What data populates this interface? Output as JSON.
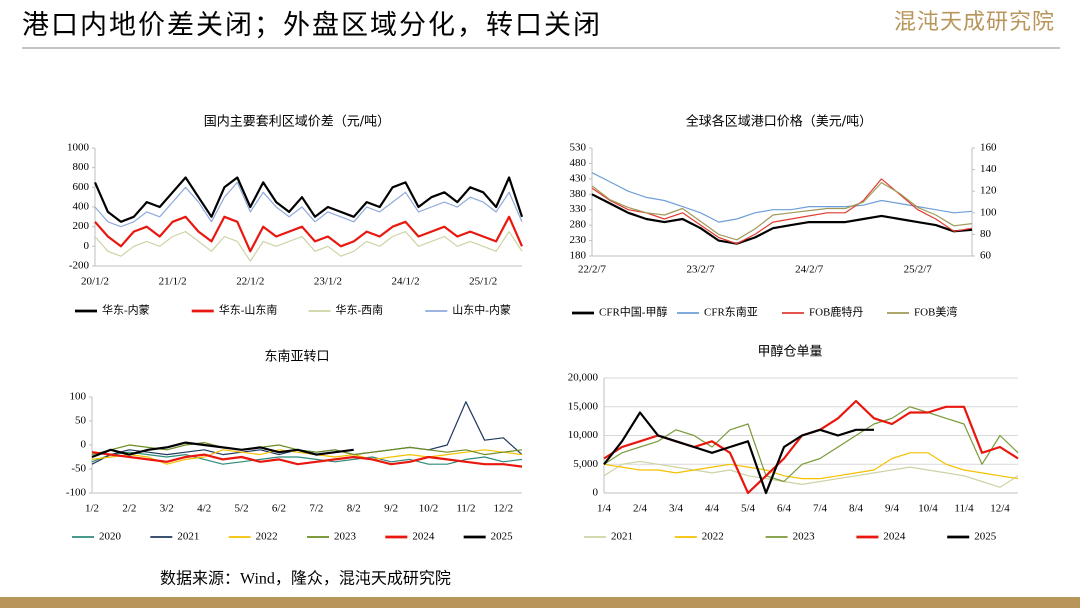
{
  "title": "港口内地价差关闭；外盘区域分化，转口关闭",
  "logo": "混沌天成研究院",
  "source": "数据来源：Wind，隆众，混沌天成研究院",
  "chart_data": [
    {
      "type": "line",
      "title": "国内主要套利区域价差（元/吨）",
      "categories": [
        "20/1/2",
        null,
        null,
        null,
        null,
        null,
        "21/1/2",
        null,
        null,
        null,
        null,
        null,
        "22/1/2",
        null,
        null,
        null,
        null,
        null,
        "23/1/2",
        null,
        null,
        null,
        null,
        null,
        "24/1/2",
        null,
        null,
        null,
        null,
        null,
        "25/1/2",
        null,
        null,
        null
      ],
      "ylim": [
        -200,
        1000
      ],
      "yticks": [
        -200,
        0,
        200,
        400,
        600,
        800,
        1000
      ],
      "grid": false,
      "series": [
        {
          "name": "华东-内蒙",
          "color": "#000000",
          "values": [
            650,
            350,
            250,
            300,
            450,
            400,
            550,
            700,
            500,
            300,
            600,
            700,
            400,
            650,
            450,
            350,
            500,
            300,
            400,
            350,
            300,
            450,
            400,
            600,
            650,
            400,
            500,
            550,
            450,
            600,
            550,
            400,
            700,
            300
          ]
        },
        {
          "name": "华东-山东南",
          "color": "#e8170f",
          "values": [
            250,
            100,
            0,
            150,
            200,
            100,
            250,
            300,
            150,
            50,
            300,
            250,
            -50,
            200,
            100,
            150,
            200,
            50,
            100,
            0,
            50,
            150,
            100,
            200,
            250,
            100,
            150,
            200,
            100,
            150,
            100,
            50,
            300,
            0
          ]
        },
        {
          "name": "华东-西南",
          "color": "#cdd3a6",
          "values": [
            100,
            -50,
            -100,
            0,
            50,
            0,
            100,
            150,
            50,
            -50,
            100,
            50,
            -150,
            50,
            0,
            50,
            100,
            -50,
            0,
            -100,
            -50,
            50,
            0,
            100,
            150,
            0,
            50,
            100,
            0,
            50,
            0,
            -50,
            150,
            -50
          ]
        },
        {
          "name": "山东中-内蒙",
          "color": "#8eaadb",
          "values": [
            400,
            250,
            200,
            250,
            350,
            300,
            450,
            600,
            450,
            250,
            500,
            650,
            350,
            550,
            400,
            300,
            400,
            250,
            350,
            300,
            250,
            400,
            350,
            450,
            550,
            350,
            400,
            450,
            400,
            500,
            450,
            350,
            550,
            250
          ]
        }
      ]
    },
    {
      "type": "line",
      "title": "全球各区域港口价格（美元/吨）",
      "categories": [
        "22/2/7",
        null,
        null,
        null,
        null,
        null,
        "23/2/7",
        null,
        null,
        null,
        null,
        null,
        "24/2/7",
        null,
        null,
        null,
        null,
        null,
        "25/2/7",
        null,
        null,
        null
      ],
      "ylim": [
        180,
        530
      ],
      "yticks": [
        180,
        230,
        280,
        330,
        380,
        430,
        480,
        530
      ],
      "y2lim": [
        60,
        160
      ],
      "y2ticks": [
        60,
        80,
        100,
        120,
        140,
        160
      ],
      "grid": false,
      "series": [
        {
          "name": "CFR中国-甲醇",
          "color": "#000000",
          "values": [
            380,
            350,
            320,
            300,
            290,
            300,
            270,
            230,
            220,
            240,
            270,
            280,
            290,
            290,
            290,
            300,
            310,
            300,
            290,
            280,
            260,
            265
          ]
        },
        {
          "name": "CFR东南亚",
          "color": "#6f9fd8",
          "values": [
            450,
            420,
            390,
            370,
            360,
            340,
            320,
            290,
            300,
            320,
            330,
            330,
            340,
            340,
            340,
            345,
            360,
            350,
            340,
            330,
            320,
            325
          ]
        },
        {
          "name": "FOB鹿特丹",
          "color": "#e03c31",
          "values": [
            400,
            360,
            330,
            320,
            300,
            320,
            280,
            240,
            220,
            250,
            290,
            300,
            310,
            320,
            320,
            360,
            430,
            380,
            330,
            300,
            260,
            270
          ]
        },
        {
          "name": "FOB美湾",
          "color": "#a09a5a",
          "axis": "y2",
          "values": [
            125,
            112,
            105,
            100,
            98,
            104,
            92,
            80,
            75,
            85,
            98,
            100,
            102,
            104,
            104,
            110,
            128,
            118,
            105,
            98,
            88,
            90
          ]
        }
      ]
    },
    {
      "type": "line",
      "title": "东南亚转口",
      "categories": [
        "1/2",
        null,
        "2/2",
        null,
        "3/2",
        null,
        "4/2",
        null,
        "5/2",
        null,
        "6/2",
        null,
        "7/2",
        null,
        "8/2",
        null,
        "9/2",
        null,
        "10/2",
        null,
        "11/2",
        null,
        "12/2",
        null
      ],
      "ylim": [
        -100,
        100
      ],
      "yticks": [
        -100,
        -50,
        0,
        50,
        100
      ],
      "grid": false,
      "series": [
        {
          "name": "2020",
          "color": "#2e8b7a",
          "values": [
            -35,
            -20,
            -15,
            -20,
            -25,
            -20,
            -30,
            -40,
            -35,
            -30,
            -25,
            -25,
            -30,
            -35,
            -30,
            -25,
            -35,
            -30,
            -40,
            -40,
            -30,
            -25,
            -35,
            -30
          ]
        },
        {
          "name": "2021",
          "color": "#1f3a5f",
          "values": [
            -40,
            -20,
            -10,
            -15,
            -20,
            -15,
            -10,
            -20,
            -15,
            -10,
            -20,
            -10,
            -15,
            -10,
            -20,
            -15,
            -10,
            -5,
            -10,
            0,
            90,
            10,
            15,
            -20
          ]
        },
        {
          "name": "2022",
          "color": "#f5c000",
          "values": [
            -30,
            -25,
            -20,
            -25,
            -40,
            -30,
            -25,
            -10,
            -15,
            -20,
            -10,
            -15,
            -20,
            -25,
            -20,
            -30,
            -25,
            -20,
            -25,
            -20,
            -15,
            -10,
            -15,
            -20
          ]
        },
        {
          "name": "2023",
          "color": "#6b8e23",
          "values": [
            -20,
            -10,
            0,
            -5,
            -10,
            0,
            5,
            -5,
            -10,
            -5,
            0,
            -10,
            -15,
            -10,
            -20,
            -15,
            -10,
            -5,
            -10,
            -15,
            -10,
            -20,
            -15,
            -10
          ]
        },
        {
          "name": "2024",
          "color": "#e8170f",
          "values": [
            -15,
            -20,
            -25,
            -30,
            -35,
            -25,
            -20,
            -30,
            -25,
            -35,
            -30,
            -40,
            -35,
            -30,
            -25,
            -30,
            -40,
            -35,
            -25,
            -30,
            -35,
            -40,
            -40,
            -45
          ]
        },
        {
          "name": "2025",
          "color": "#000000",
          "values": [
            -25,
            -10,
            -20,
            -10,
            -5,
            5,
            0,
            -5,
            -10,
            -5,
            -15,
            -10,
            -20,
            -15,
            -10,
            null,
            null,
            null,
            null,
            null,
            null,
            null,
            null,
            null
          ]
        }
      ]
    },
    {
      "type": "line",
      "title": "甲醇仓单量",
      "categories": [
        "1/4",
        null,
        "2/4",
        null,
        "3/4",
        null,
        "4/4",
        null,
        "5/4",
        null,
        "6/4",
        null,
        "7/4",
        null,
        "8/4",
        null,
        "9/4",
        null,
        "10/4",
        null,
        "11/4",
        null,
        "12/4",
        null
      ],
      "ylim": [
        0,
        20000
      ],
      "yticks": [
        0,
        {
          "value": 5000,
          "label": "5,000"
        },
        {
          "value": 10000,
          "label": "10,000"
        },
        {
          "value": 15000,
          "label": "15,000"
        },
        {
          "value": 20000,
          "label": "20,000"
        }
      ],
      "grid": true,
      "series": [
        {
          "name": "2021",
          "color": "#cdd3a6",
          "values": [
            3000,
            5000,
            5500,
            5000,
            4500,
            4000,
            3500,
            4000,
            3000,
            2500,
            2000,
            1500,
            2000,
            2500,
            3000,
            3500,
            4000,
            4500,
            4000,
            3500,
            3000,
            2000,
            1000,
            3000
          ]
        },
        {
          "name": "2022",
          "color": "#f5c000",
          "values": [
            5000,
            4500,
            4000,
            4000,
            3500,
            4000,
            4500,
            5000,
            4500,
            4000,
            3000,
            2500,
            2500,
            3000,
            3500,
            4000,
            6000,
            7000,
            7000,
            5000,
            4000,
            3500,
            3000,
            2500
          ]
        },
        {
          "name": "2023",
          "color": "#7a9a3a",
          "values": [
            5000,
            7000,
            8000,
            9000,
            11000,
            10000,
            8000,
            11000,
            12000,
            3000,
            2000,
            5000,
            6000,
            8000,
            10000,
            12000,
            13000,
            15000,
            14000,
            13000,
            12000,
            5000,
            10000,
            7000
          ]
        },
        {
          "name": "2024",
          "color": "#e8170f",
          "values": [
            6000,
            8000,
            9000,
            10000,
            9000,
            8000,
            9000,
            7000,
            0,
            3000,
            6000,
            10000,
            11000,
            13000,
            16000,
            13000,
            12000,
            14000,
            14000,
            15000,
            15000,
            7000,
            8000,
            6000
          ]
        },
        {
          "name": "2025",
          "color": "#000000",
          "values": [
            5000,
            9000,
            14000,
            10000,
            9000,
            8000,
            7000,
            8000,
            9000,
            0,
            8000,
            10000,
            11000,
            10000,
            11000,
            11000,
            null,
            null,
            null,
            null,
            null,
            null,
            null,
            null
          ]
        }
      ]
    }
  ]
}
